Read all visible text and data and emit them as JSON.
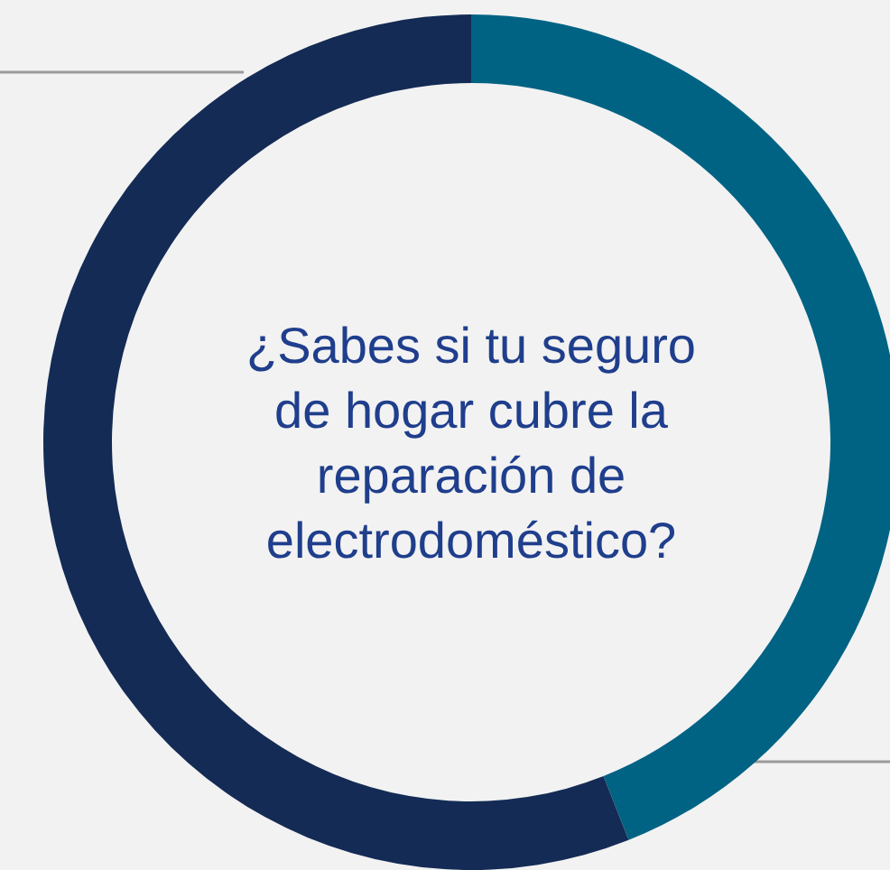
{
  "chart_data": {
    "type": "donut",
    "title": "¿Sabes si tu seguro\nde hogar cubre la\nreparación de\nelectrodoméstico?",
    "categories": [
      null,
      null
    ],
    "values": [
      44,
      56
    ],
    "colors": [
      "#006384",
      "#142b55"
    ]
  }
}
